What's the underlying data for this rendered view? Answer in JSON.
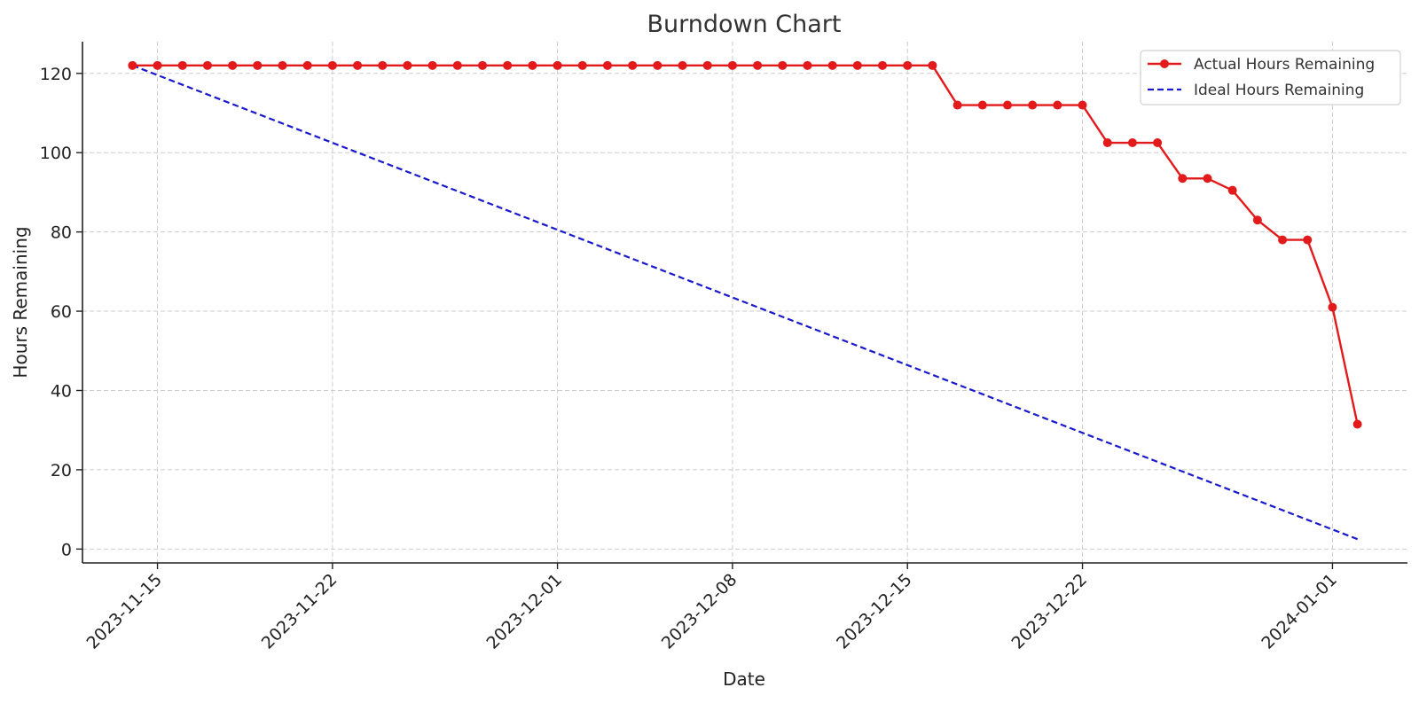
{
  "colors": {
    "actual": "#e31a1c",
    "ideal": "#1a1acc",
    "grid": "#cccccc"
  },
  "chart_data": {
    "type": "line",
    "title": "Burndown Chart",
    "xlabel": "Date",
    "ylabel": "Hours Remaining",
    "x_type": "date",
    "xlim": [
      "2023-11-12",
      "2024-01-04"
    ],
    "ylim": [
      -3.5,
      128
    ],
    "x_ticks": [
      "2023-11-15",
      "2023-11-22",
      "2023-12-01",
      "2023-12-08",
      "2023-12-15",
      "2023-12-22",
      "2024-01-01"
    ],
    "y_ticks": [
      0,
      20,
      40,
      60,
      80,
      100,
      120
    ],
    "grid": true,
    "legend_position": "top-right",
    "series": [
      {
        "name": "Actual Hours Remaining",
        "style": "solid-with-markers",
        "color": "#e31a1c",
        "points": [
          [
            "2023-11-14",
            122
          ],
          [
            "2023-11-15",
            122
          ],
          [
            "2023-11-16",
            122
          ],
          [
            "2023-11-17",
            122
          ],
          [
            "2023-11-18",
            122
          ],
          [
            "2023-11-19",
            122
          ],
          [
            "2023-11-20",
            122
          ],
          [
            "2023-11-21",
            122
          ],
          [
            "2023-11-22",
            122
          ],
          [
            "2023-11-23",
            122
          ],
          [
            "2023-11-24",
            122
          ],
          [
            "2023-11-25",
            122
          ],
          [
            "2023-11-26",
            122
          ],
          [
            "2023-11-27",
            122
          ],
          [
            "2023-11-28",
            122
          ],
          [
            "2023-11-29",
            122
          ],
          [
            "2023-11-30",
            122
          ],
          [
            "2023-12-01",
            122
          ],
          [
            "2023-12-02",
            122
          ],
          [
            "2023-12-03",
            122
          ],
          [
            "2023-12-04",
            122
          ],
          [
            "2023-12-05",
            122
          ],
          [
            "2023-12-06",
            122
          ],
          [
            "2023-12-07",
            122
          ],
          [
            "2023-12-08",
            122
          ],
          [
            "2023-12-09",
            122
          ],
          [
            "2023-12-10",
            122
          ],
          [
            "2023-12-11",
            122
          ],
          [
            "2023-12-12",
            122
          ],
          [
            "2023-12-13",
            122
          ],
          [
            "2023-12-14",
            122
          ],
          [
            "2023-12-15",
            122
          ],
          [
            "2023-12-16",
            122
          ],
          [
            "2023-12-17",
            112
          ],
          [
            "2023-12-18",
            112
          ],
          [
            "2023-12-19",
            112
          ],
          [
            "2023-12-20",
            112
          ],
          [
            "2023-12-21",
            112
          ],
          [
            "2023-12-22",
            112
          ],
          [
            "2023-12-23",
            102.5
          ],
          [
            "2023-12-24",
            102.5
          ],
          [
            "2023-12-25",
            102.5
          ],
          [
            "2023-12-26",
            93.5
          ],
          [
            "2023-12-27",
            93.5
          ],
          [
            "2023-12-28",
            90.5
          ],
          [
            "2023-12-29",
            83
          ],
          [
            "2023-12-30",
            78
          ],
          [
            "2023-12-31",
            78
          ],
          [
            "2024-01-01",
            61
          ],
          [
            "2024-01-02",
            31.5
          ]
        ]
      },
      {
        "name": "Ideal Hours Remaining",
        "style": "dashed",
        "color": "#1a1acc",
        "points": [
          [
            "2023-11-14",
            122
          ],
          [
            "2024-01-02",
            2.5
          ]
        ]
      }
    ]
  }
}
